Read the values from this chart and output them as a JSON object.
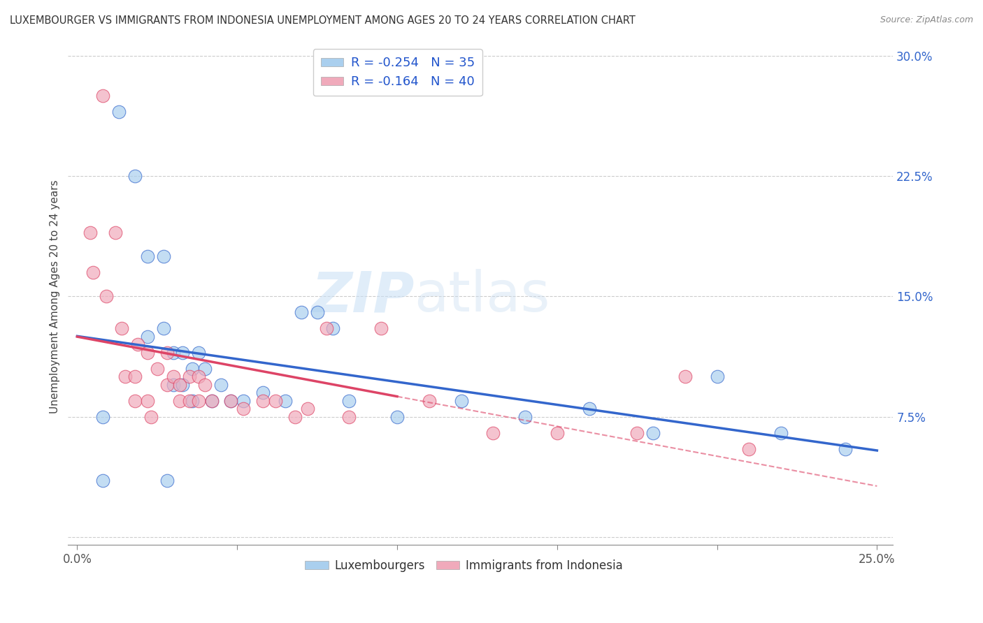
{
  "title": "LUXEMBOURGER VS IMMIGRANTS FROM INDONESIA UNEMPLOYMENT AMONG AGES 20 TO 24 YEARS CORRELATION CHART",
  "source": "Source: ZipAtlas.com",
  "ylabel_label": "Unemployment Among Ages 20 to 24 years",
  "xlim": [
    -0.003,
    0.255
  ],
  "ylim": [
    -0.005,
    0.305
  ],
  "xticks": [
    0.0,
    0.05,
    0.1,
    0.15,
    0.2,
    0.25
  ],
  "xtick_labels": [
    "0.0%",
    "",
    "",
    "",
    "",
    "25.0%"
  ],
  "ytick_right_labels": [
    "",
    "7.5%",
    "15.0%",
    "22.5%",
    "30.0%"
  ],
  "yticks": [
    0.0,
    0.075,
    0.15,
    0.225,
    0.3
  ],
  "legend1_label": "R = -0.254   N = 35",
  "legend2_label": "R = -0.164   N = 40",
  "legend_series1": "Luxembourgers",
  "legend_series2": "Immigrants from Indonesia",
  "series1_color": "#aacfee",
  "series2_color": "#f0aabb",
  "line1_color": "#3366cc",
  "line2_color": "#dd4466",
  "watermark_zip": "ZIP",
  "watermark_atlas": "atlas",
  "blue_scatter_x": [
    0.008,
    0.013,
    0.018,
    0.022,
    0.022,
    0.027,
    0.027,
    0.03,
    0.03,
    0.033,
    0.033,
    0.036,
    0.036,
    0.038,
    0.04,
    0.042,
    0.045,
    0.048,
    0.052,
    0.058,
    0.065,
    0.07,
    0.075,
    0.08,
    0.085,
    0.1,
    0.12,
    0.14,
    0.16,
    0.18,
    0.2,
    0.22,
    0.24,
    0.008,
    0.028
  ],
  "blue_scatter_y": [
    0.075,
    0.265,
    0.225,
    0.175,
    0.125,
    0.175,
    0.13,
    0.115,
    0.095,
    0.115,
    0.095,
    0.105,
    0.085,
    0.115,
    0.105,
    0.085,
    0.095,
    0.085,
    0.085,
    0.09,
    0.085,
    0.14,
    0.14,
    0.13,
    0.085,
    0.075,
    0.085,
    0.075,
    0.08,
    0.065,
    0.1,
    0.065,
    0.055,
    0.035,
    0.035
  ],
  "pink_scatter_x": [
    0.004,
    0.008,
    0.012,
    0.015,
    0.018,
    0.018,
    0.022,
    0.022,
    0.025,
    0.028,
    0.028,
    0.03,
    0.032,
    0.032,
    0.035,
    0.035,
    0.038,
    0.038,
    0.04,
    0.042,
    0.048,
    0.052,
    0.058,
    0.062,
    0.068,
    0.072,
    0.078,
    0.085,
    0.095,
    0.11,
    0.13,
    0.15,
    0.175,
    0.19,
    0.21,
    0.005,
    0.009,
    0.014,
    0.019,
    0.023
  ],
  "pink_scatter_y": [
    0.19,
    0.275,
    0.19,
    0.1,
    0.1,
    0.085,
    0.115,
    0.085,
    0.105,
    0.115,
    0.095,
    0.1,
    0.095,
    0.085,
    0.1,
    0.085,
    0.1,
    0.085,
    0.095,
    0.085,
    0.085,
    0.08,
    0.085,
    0.085,
    0.075,
    0.08,
    0.13,
    0.075,
    0.13,
    0.085,
    0.065,
    0.065,
    0.065,
    0.1,
    0.055,
    0.165,
    0.15,
    0.13,
    0.12,
    0.075
  ]
}
